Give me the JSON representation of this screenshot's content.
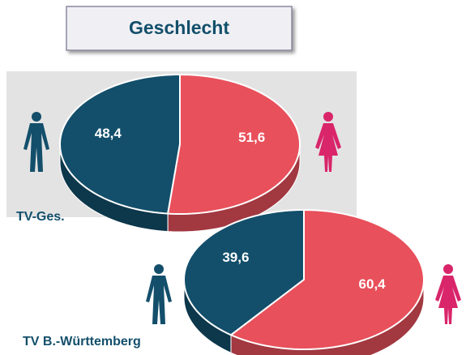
{
  "title": "Geschlecht",
  "chart_data": [
    {
      "type": "pie",
      "title": "TV-Ges.",
      "values": [
        48.4,
        51.6
      ],
      "value_labels": [
        "48,4",
        "51,6"
      ],
      "colors": [
        "#134f6b",
        "#e8505b"
      ]
    },
    {
      "type": "pie",
      "title": "TV B.-Württemberg",
      "values": [
        39.6,
        60.4
      ],
      "value_labels": [
        "39,6",
        "60,4"
      ],
      "colors": [
        "#134f6b",
        "#e8505b"
      ]
    }
  ]
}
